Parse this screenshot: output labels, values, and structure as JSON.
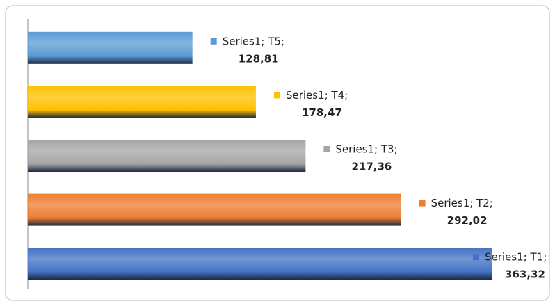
{
  "chart_data": {
    "type": "bar",
    "orientation": "horizontal",
    "data_labels": [
      "Series1; T1;",
      "Series1; T2;",
      "Series1; T3;",
      "Series1; T4;",
      "Series1; T5;"
    ],
    "values": [
      363.32,
      292.02,
      217.36,
      178.47,
      128.81
    ],
    "value_labels": [
      "363,32",
      "292,02",
      "217,36",
      "178,47",
      "128,81"
    ],
    "colors": [
      "#4472c4",
      "#ed7d31",
      "#a5a5a5",
      "#ffc000",
      "#5b9bd5"
    ],
    "xlim": [
      0,
      400
    ]
  }
}
